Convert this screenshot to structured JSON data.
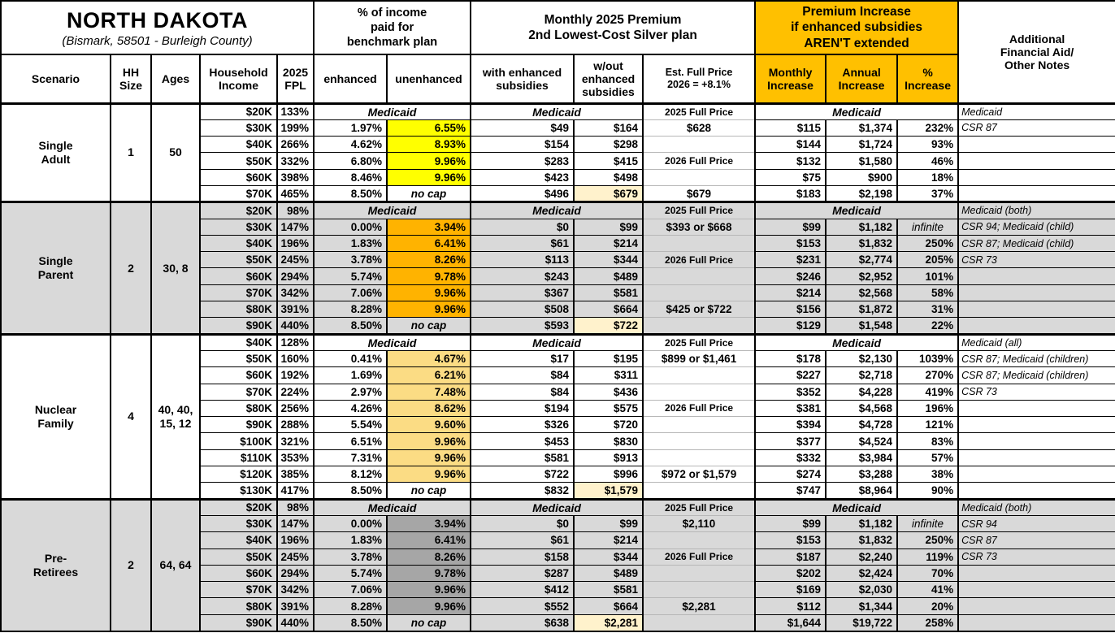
{
  "header": {
    "title": "NORTH DAKOTA",
    "subtitle": "(Bismark, 58501 - Burleigh County)",
    "groups": {
      "income_pct": "% of income\npaid for\nbenchmark plan",
      "premium": "Monthly 2025 Premium\n2nd Lowest-Cost Silver plan",
      "increase": "Premium Increase\nif enhanced subsidies\nAREN'T extended",
      "notes": "Additional\nFinancial Aid/\nOther Notes"
    },
    "columns": {
      "scenario": "Scenario",
      "hh_size": "HH\nSize",
      "ages": "Ages",
      "income": "Household\nIncome",
      "fpl": "2025\nFPL",
      "enhanced": "enhanced",
      "unenhanced": "unenhanced",
      "with_subsidies": "with enhanced\nsubsidies",
      "without_subsidies": "w/out\nenhanced\nsubsidies",
      "full_price": "Est. Full Price\n2026 = +8.1%",
      "monthly_increase": "Monthly\nIncrease",
      "annual_increase": "Annual\nIncrease",
      "pct_increase": "%\nIncrease"
    }
  },
  "labels": {
    "medicaid": "Medicaid",
    "no_cap": "no cap",
    "price_2025": "2025 Full Price",
    "price_2026": "2026 Full Price"
  },
  "colors": {
    "header_gold": "#FFC000",
    "block_gray": "#D9D9D9",
    "single_adult_highlight": "#FFFF00",
    "single_parent_highlight": "#FFB300",
    "nuclear_family_highlight": "#FBDC84",
    "pre_retirees_highlight": "#A6A6A6",
    "full_price_highlight": "#FFF2CC"
  },
  "blocks": [
    {
      "scenario": "Single\nAdult",
      "hh_size": "1",
      "ages": "50",
      "bg": "#FFFFFF",
      "hl": "#FFFF00",
      "rows": [
        {
          "inc": "$20K",
          "fpl": "133%",
          "med": true,
          "fp": "2025 Full Price",
          "fpt": "label",
          "note": "Medicaid"
        },
        {
          "inc": "$30K",
          "fpl": "199%",
          "enh": "1.97%",
          "unenh": "6.55%",
          "u": "hl",
          "wes": "$49",
          "wos": "$164",
          "fp": "$628",
          "fpt": "value",
          "mi": "$115",
          "ai": "$1,374",
          "pi": "232%",
          "note": "CSR 87"
        },
        {
          "inc": "$40K",
          "fpl": "266%",
          "enh": "4.62%",
          "unenh": "8.93%",
          "u": "hl",
          "wes": "$154",
          "wos": "$298",
          "mi": "$144",
          "ai": "$1,724",
          "pi": "93%"
        },
        {
          "inc": "$50K",
          "fpl": "332%",
          "enh": "6.80%",
          "unenh": "9.96%",
          "u": "hl",
          "wes": "$283",
          "wos": "$415",
          "fp": "2026 Full Price",
          "fpt": "label",
          "mi": "$132",
          "ai": "$1,580",
          "pi": "46%"
        },
        {
          "inc": "$60K",
          "fpl": "398%",
          "enh": "8.46%",
          "unenh": "9.96%",
          "u": "hl",
          "wes": "$423",
          "wos": "$498",
          "mi": "$75",
          "ai": "$900",
          "pi": "18%"
        },
        {
          "inc": "$70K",
          "fpl": "465%",
          "enh": "8.50%",
          "unenh": "no cap",
          "u": "nocap",
          "wes": "$496",
          "wos": "$679",
          "wosHl": true,
          "fp": "$679",
          "fpt": "value",
          "mi": "$183",
          "ai": "$2,198",
          "pi": "37%"
        }
      ]
    },
    {
      "scenario": "Single\nParent",
      "hh_size": "2",
      "ages": "30, 8",
      "bg": "#D9D9D9",
      "hl": "#FFB300",
      "rows": [
        {
          "inc": "$20K",
          "fpl": "98%",
          "med": true,
          "fp": "2025 Full Price",
          "fpt": "label",
          "note": "Medicaid (both)"
        },
        {
          "inc": "$30K",
          "fpl": "147%",
          "enh": "0.00%",
          "unenh": "3.94%",
          "u": "hl",
          "wes": "$0",
          "wos": "$99",
          "fp": "$393 or $668",
          "fpt": "value",
          "mi": "$99",
          "ai": "$1,182",
          "pi": "infinite",
          "piInf": true,
          "note": "CSR 94; Medicaid (child)"
        },
        {
          "inc": "$40K",
          "fpl": "196%",
          "enh": "1.83%",
          "unenh": "6.41%",
          "u": "hl",
          "wes": "$61",
          "wos": "$214",
          "mi": "$153",
          "ai": "$1,832",
          "pi": "250%",
          "note": "CSR 87; Medicaid (child)"
        },
        {
          "inc": "$50K",
          "fpl": "245%",
          "enh": "3.78%",
          "unenh": "8.26%",
          "u": "hl",
          "wes": "$113",
          "wos": "$344",
          "fp": "2026 Full Price",
          "fpt": "label",
          "mi": "$231",
          "ai": "$2,774",
          "pi": "205%",
          "note": "CSR 73"
        },
        {
          "inc": "$60K",
          "fpl": "294%",
          "enh": "5.74%",
          "unenh": "9.78%",
          "u": "hl",
          "wes": "$243",
          "wos": "$489",
          "mi": "$246",
          "ai": "$2,952",
          "pi": "101%"
        },
        {
          "inc": "$70K",
          "fpl": "342%",
          "enh": "7.06%",
          "unenh": "9.96%",
          "u": "hl",
          "wes": "$367",
          "wos": "$581",
          "mi": "$214",
          "ai": "$2,568",
          "pi": "58%"
        },
        {
          "inc": "$80K",
          "fpl": "391%",
          "enh": "8.28%",
          "unenh": "9.96%",
          "u": "hl",
          "wes": "$508",
          "wos": "$664",
          "fp": "$425 or $722",
          "fpt": "value",
          "mi": "$156",
          "ai": "$1,872",
          "pi": "31%"
        },
        {
          "inc": "$90K",
          "fpl": "440%",
          "enh": "8.50%",
          "unenh": "no cap",
          "u": "nocap",
          "wes": "$593",
          "wos": "$722",
          "wosHl": true,
          "mi": "$129",
          "ai": "$1,548",
          "pi": "22%"
        }
      ]
    },
    {
      "scenario": "Nuclear\nFamily",
      "hh_size": "4",
      "ages": "40, 40,\n15, 12",
      "bg": "#FFFFFF",
      "hl": "#FBDC84",
      "rows": [
        {
          "inc": "$40K",
          "fpl": "128%",
          "med": true,
          "fp": "2025 Full Price",
          "fpt": "label",
          "note": "Medicaid (all)"
        },
        {
          "inc": "$50K",
          "fpl": "160%",
          "enh": "0.41%",
          "unenh": "4.67%",
          "u": "hl",
          "wes": "$17",
          "wos": "$195",
          "fp": "$899 or $1,461",
          "fpt": "value",
          "mi": "$178",
          "ai": "$2,130",
          "pi": "1039%",
          "note": "CSR 87; Medicaid (children)"
        },
        {
          "inc": "$60K",
          "fpl": "192%",
          "enh": "1.69%",
          "unenh": "6.21%",
          "u": "hl",
          "wes": "$84",
          "wos": "$311",
          "mi": "$227",
          "ai": "$2,718",
          "pi": "270%",
          "note": "CSR 87; Medicaid (children)"
        },
        {
          "inc": "$70K",
          "fpl": "224%",
          "enh": "2.97%",
          "unenh": "7.48%",
          "u": "hl",
          "wes": "$84",
          "wos": "$436",
          "mi": "$352",
          "ai": "$4,228",
          "pi": "419%",
          "note": "CSR 73"
        },
        {
          "inc": "$80K",
          "fpl": "256%",
          "enh": "4.26%",
          "unenh": "8.62%",
          "u": "hl",
          "wes": "$194",
          "wos": "$575",
          "fp": "2026 Full Price",
          "fpt": "label",
          "mi": "$381",
          "ai": "$4,568",
          "pi": "196%"
        },
        {
          "inc": "$90K",
          "fpl": "288%",
          "enh": "5.54%",
          "unenh": "9.60%",
          "u": "hl",
          "wes": "$326",
          "wos": "$720",
          "mi": "$394",
          "ai": "$4,728",
          "pi": "121%"
        },
        {
          "inc": "$100K",
          "fpl": "321%",
          "enh": "6.51%",
          "unenh": "9.96%",
          "u": "hl",
          "wes": "$453",
          "wos": "$830",
          "mi": "$377",
          "ai": "$4,524",
          "pi": "83%"
        },
        {
          "inc": "$110K",
          "fpl": "353%",
          "enh": "7.31%",
          "unenh": "9.96%",
          "u": "hl",
          "wes": "$581",
          "wos": "$913",
          "mi": "$332",
          "ai": "$3,984",
          "pi": "57%"
        },
        {
          "inc": "$120K",
          "fpl": "385%",
          "enh": "8.12%",
          "unenh": "9.96%",
          "u": "hl",
          "wes": "$722",
          "wos": "$996",
          "fp": "$972 or $1,579",
          "fpt": "value",
          "mi": "$274",
          "ai": "$3,288",
          "pi": "38%"
        },
        {
          "inc": "$130K",
          "fpl": "417%",
          "enh": "8.50%",
          "unenh": "no cap",
          "u": "nocap",
          "wes": "$832",
          "wos": "$1,579",
          "wosHl": true,
          "mi": "$747",
          "ai": "$8,964",
          "pi": "90%"
        }
      ]
    },
    {
      "scenario": "Pre-\nRetirees",
      "hh_size": "2",
      "ages": "64, 64",
      "bg": "#D9D9D9",
      "hl": "#A6A6A6",
      "rows": [
        {
          "inc": "$20K",
          "fpl": "98%",
          "med": true,
          "fp": "2025 Full Price",
          "fpt": "label",
          "note": "Medicaid (both)"
        },
        {
          "inc": "$30K",
          "fpl": "147%",
          "enh": "0.00%",
          "unenh": "3.94%",
          "u": "hl",
          "wes": "$0",
          "wos": "$99",
          "fp": "$2,110",
          "fpt": "value",
          "mi": "$99",
          "ai": "$1,182",
          "pi": "infinite",
          "piInf": true,
          "note": "CSR 94"
        },
        {
          "inc": "$40K",
          "fpl": "196%",
          "enh": "1.83%",
          "unenh": "6.41%",
          "u": "hl",
          "wes": "$61",
          "wos": "$214",
          "mi": "$153",
          "ai": "$1,832",
          "pi": "250%",
          "note": "CSR 87"
        },
        {
          "inc": "$50K",
          "fpl": "245%",
          "enh": "3.78%",
          "unenh": "8.26%",
          "u": "hl",
          "wes": "$158",
          "wos": "$344",
          "fp": "2026 Full Price",
          "fpt": "label",
          "mi": "$187",
          "ai": "$2,240",
          "pi": "119%",
          "note": "CSR 73"
        },
        {
          "inc": "$60K",
          "fpl": "294%",
          "enh": "5.74%",
          "unenh": "9.78%",
          "u": "hl",
          "wes": "$287",
          "wos": "$489",
          "mi": "$202",
          "ai": "$2,424",
          "pi": "70%"
        },
        {
          "inc": "$70K",
          "fpl": "342%",
          "enh": "7.06%",
          "unenh": "9.96%",
          "u": "hl",
          "wes": "$412",
          "wos": "$581",
          "mi": "$169",
          "ai": "$2,030",
          "pi": "41%"
        },
        {
          "inc": "$80K",
          "fpl": "391%",
          "enh": "8.28%",
          "unenh": "9.96%",
          "u": "hl",
          "wes": "$552",
          "wos": "$664",
          "fp": "$2,281",
          "fpt": "value",
          "mi": "$112",
          "ai": "$1,344",
          "pi": "20%"
        },
        {
          "inc": "$90K",
          "fpl": "440%",
          "enh": "8.50%",
          "unenh": "no cap",
          "u": "nocap",
          "wes": "$638",
          "wos": "$2,281",
          "wosHl": true,
          "mi": "$1,644",
          "ai": "$19,722",
          "pi": "258%"
        }
      ]
    }
  ]
}
